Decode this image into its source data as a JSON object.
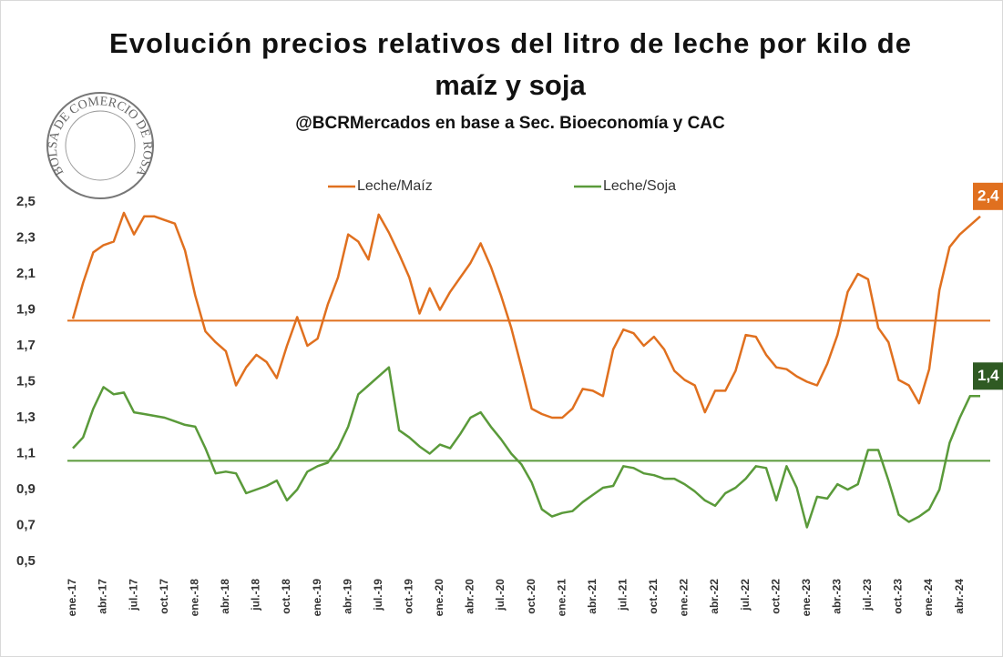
{
  "chart_data": {
    "type": "line",
    "title": [
      "Evolución precios relativos del litro de leche por kilo de",
      "maíz y soja"
    ],
    "subtitle": "@BCRMercados en base a Sec. Bioeconomía y CAC",
    "logo_text": "BOLSA DE COMERCIO DE ROSARIO",
    "categories": [
      "ene.-17",
      null,
      null,
      "abr.-17",
      null,
      null,
      "jul.-17",
      null,
      null,
      "oct.-17",
      null,
      null,
      "ene.-18",
      null,
      null,
      "abr.-18",
      null,
      null,
      "jul.-18",
      null,
      null,
      "oct.-18",
      null,
      null,
      "ene.-19",
      null,
      null,
      "abr.-19",
      null,
      null,
      "jul.-19",
      null,
      null,
      "oct.-19",
      null,
      null,
      "ene.-20",
      null,
      null,
      "abr.-20",
      null,
      null,
      "jul.-20",
      null,
      null,
      "oct.-20",
      null,
      null,
      "ene.-21",
      null,
      null,
      "abr.-21",
      null,
      null,
      "jul.-21",
      null,
      null,
      "oct.-21",
      null,
      null,
      "ene.-22",
      null,
      null,
      "abr.-22",
      null,
      null,
      "jul.-22",
      null,
      null,
      "oct.-22",
      null,
      null,
      "ene.-23",
      null,
      null,
      "abr.-23",
      null,
      null,
      "jul.-23",
      null,
      null,
      "oct.-23",
      null,
      null,
      "ene.-24",
      null,
      null,
      "abr.-24",
      null,
      null
    ],
    "series": [
      {
        "name": "Leche/Maíz",
        "color": "#e0701f",
        "average": 1.84,
        "end_label": "2,4",
        "label_color": "#e0701f",
        "values": [
          1.85,
          2.05,
          2.22,
          2.26,
          2.28,
          2.44,
          2.32,
          2.42,
          2.42,
          2.4,
          2.38,
          2.23,
          1.98,
          1.78,
          1.72,
          1.67,
          1.48,
          1.58,
          1.65,
          1.61,
          1.52,
          1.7,
          1.86,
          1.7,
          1.74,
          1.93,
          2.08,
          2.32,
          2.28,
          2.18,
          2.43,
          2.33,
          2.21,
          2.08,
          1.88,
          2.02,
          1.9,
          2.0,
          2.08,
          2.16,
          2.27,
          2.14,
          1.98,
          1.8,
          1.58,
          1.35,
          1.32,
          1.3,
          1.3,
          1.35,
          1.46,
          1.45,
          1.42,
          1.68,
          1.79,
          1.77,
          1.7,
          1.75,
          1.68,
          1.56,
          1.51,
          1.48,
          1.33,
          1.45,
          1.45,
          1.56,
          1.76,
          1.75,
          1.65,
          1.58,
          1.57,
          1.53,
          1.5,
          1.48,
          1.6,
          1.76,
          2.0,
          2.1,
          2.07,
          1.8,
          1.72,
          1.51,
          1.48,
          1.38,
          1.57,
          2.01,
          2.25,
          2.32,
          2.37,
          2.42
        ]
      },
      {
        "name": "Leche/Soja",
        "color": "#5a9a3a",
        "average": 1.06,
        "end_label": "1,4",
        "label_color": "#2f5a23",
        "values": [
          1.13,
          1.19,
          1.35,
          1.47,
          1.43,
          1.44,
          1.33,
          1.32,
          1.31,
          1.3,
          1.28,
          1.26,
          1.25,
          1.13,
          0.99,
          1.0,
          0.99,
          0.88,
          0.9,
          0.92,
          0.95,
          0.84,
          0.9,
          1.0,
          1.03,
          1.05,
          1.13,
          1.25,
          1.43,
          1.48,
          1.53,
          1.58,
          1.23,
          1.19,
          1.14,
          1.1,
          1.15,
          1.13,
          1.21,
          1.3,
          1.33,
          1.25,
          1.18,
          1.1,
          1.04,
          0.94,
          0.79,
          0.75,
          0.77,
          0.78,
          0.83,
          0.87,
          0.91,
          0.92,
          1.03,
          1.02,
          0.99,
          0.98,
          0.96,
          0.96,
          0.93,
          0.89,
          0.84,
          0.81,
          0.88,
          0.91,
          0.96,
          1.03,
          1.02,
          0.84,
          1.03,
          0.91,
          0.69,
          0.86,
          0.85,
          0.93,
          0.9,
          0.93,
          1.12,
          1.12,
          0.95,
          0.76,
          0.72,
          0.75,
          0.79,
          0.9,
          1.16,
          1.3,
          1.42,
          1.42
        ]
      }
    ],
    "ylim": [
      0.5,
      2.5
    ],
    "yticks": [
      {
        "value": 0.5,
        "label": "0,5"
      },
      {
        "value": 0.7,
        "label": "0,7"
      },
      {
        "value": 0.9,
        "label": "0,9"
      },
      {
        "value": 1.1,
        "label": "1,1"
      },
      {
        "value": 1.3,
        "label": "1,3"
      },
      {
        "value": 1.5,
        "label": "1,5"
      },
      {
        "value": 1.7,
        "label": "1,7"
      },
      {
        "value": 1.9,
        "label": "1,9"
      },
      {
        "value": 2.1,
        "label": "2,1"
      },
      {
        "value": 2.3,
        "label": "2,3"
      },
      {
        "value": 2.5,
        "label": "2,5"
      }
    ],
    "grid": false
  }
}
